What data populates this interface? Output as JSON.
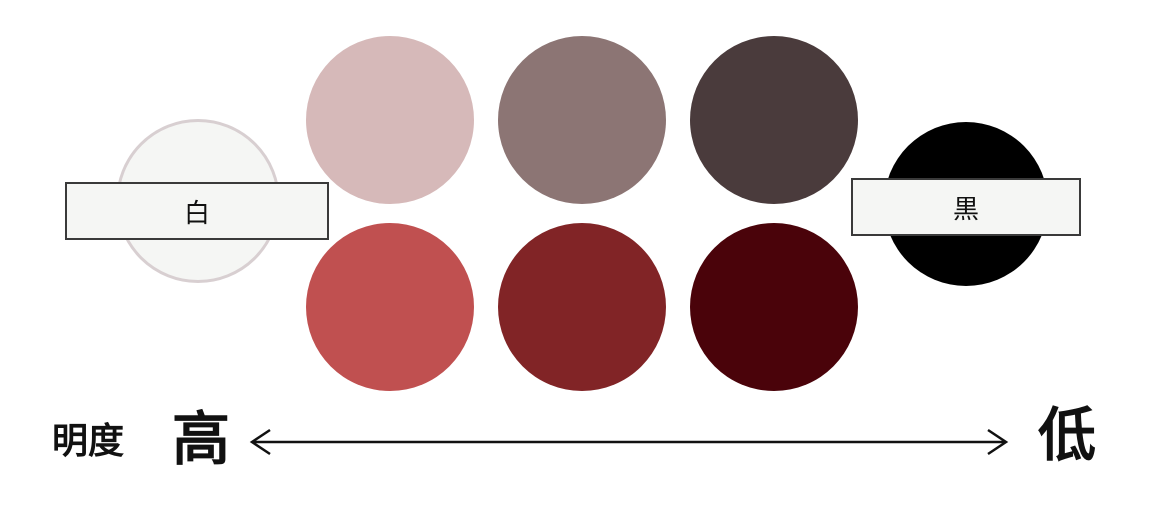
{
  "white_circle": {
    "label": "白",
    "color": "#f5f6f4",
    "border_color": "#d8cfd1"
  },
  "black_circle": {
    "label": "黒",
    "color": "#000000"
  },
  "tint_row": {
    "colors": [
      "#d6b9b9",
      "#8c7574",
      "#4a3b3c"
    ]
  },
  "shade_row": {
    "colors": [
      "#c05050",
      "#812426",
      "#4a030a"
    ]
  },
  "brightness_axis": {
    "label": "明度",
    "high": "高",
    "low": "低",
    "arrow_color": "#111111"
  }
}
